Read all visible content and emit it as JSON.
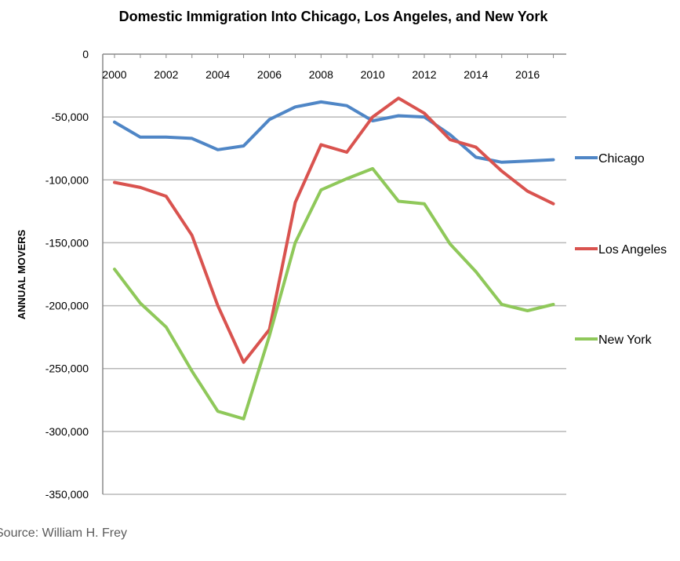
{
  "chart_data": {
    "type": "line",
    "title": "Domestic Immigration Into Chicago, Los Angeles, and New York",
    "xlabel": "",
    "ylabel": "ANNUAL MOVERS",
    "x": [
      2000,
      2001,
      2002,
      2003,
      2004,
      2005,
      2006,
      2007,
      2008,
      2009,
      2010,
      2011,
      2012,
      2013,
      2014,
      2015,
      2016,
      2017
    ],
    "x_tick_labels": [
      "2000",
      "2002",
      "2004",
      "2006",
      "2008",
      "2010",
      "2012",
      "2014",
      "2016"
    ],
    "y_tick_labels": [
      "0",
      "-50,000",
      "-100,000",
      "-150,000",
      "-200,000",
      "-250,000",
      "-300,000",
      "-350,000"
    ],
    "ylim": [
      -350000,
      0
    ],
    "xlim": [
      2000,
      2017.5
    ],
    "grid": true,
    "legend_position": "right",
    "series": [
      {
        "name": "Chicago",
        "color": "#4f86c6",
        "values": [
          -54000,
          -66000,
          -66000,
          -67000,
          -76000,
          -73000,
          -52000,
          -42000,
          -38000,
          -41000,
          -53000,
          -49000,
          -50000,
          -64000,
          -82000,
          -86000,
          -85000,
          -84000
        ]
      },
      {
        "name": "Los Angeles",
        "color": "#d9534f",
        "values": [
          -102000,
          -106000,
          -113000,
          -144000,
          -200000,
          -245000,
          -219000,
          -118000,
          -72000,
          -78000,
          -50000,
          -35000,
          -47000,
          -68000,
          -74000,
          -93000,
          -109000,
          -119000
        ]
      },
      {
        "name": "New York",
        "color": "#8fc85a",
        "values": [
          -171000,
          -198000,
          -217000,
          -252000,
          -284000,
          -290000,
          -224000,
          -150000,
          -108000,
          -99000,
          -91000,
          -117000,
          -119000,
          -151000,
          -173000,
          -199000,
          -204000,
          -199000
        ]
      }
    ]
  },
  "source_text": "Source: William H. Frey"
}
